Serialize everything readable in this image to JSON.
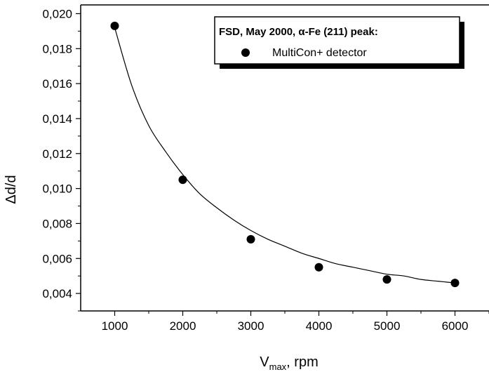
{
  "chart_data": {
    "type": "scatter",
    "title": "",
    "xlabel": {
      "main": "V",
      "sub": "max",
      "rest": ", rpm"
    },
    "ylabel": "Δd/d",
    "xlim": [
      500,
      6500
    ],
    "ylim": [
      0.003,
      0.0205
    ],
    "x_ticks": [
      1000,
      2000,
      3000,
      4000,
      5000,
      6000
    ],
    "x_tick_labels": [
      "1000",
      "2000",
      "3000",
      "4000",
      "5000",
      "6000"
    ],
    "y_ticks": [
      0.004,
      0.006,
      0.008,
      0.01,
      0.012,
      0.014,
      0.016,
      0.018,
      0.02
    ],
    "y_tick_labels": [
      "0,004",
      "0,006",
      "0,008",
      "0,010",
      "0,012",
      "0,014",
      "0,016",
      "0,018",
      "0,020"
    ],
    "grid": false,
    "legend": {
      "placement": "top-right",
      "title": "FSD, May 2000, α-Fe (211) peak:",
      "entries": [
        "MultiCon+ detector"
      ]
    },
    "series": [
      {
        "name": "MultiCon+ detector",
        "marker": "filled-circle",
        "x": [
          1000,
          2000,
          3000,
          4000,
          5000,
          6000
        ],
        "y": [
          0.0193,
          0.0105,
          0.0071,
          0.0055,
          0.0048,
          0.0046
        ]
      }
    ],
    "fit_curve": {
      "x": [
        1000,
        1250,
        1500,
        1750,
        2000,
        2250,
        2500,
        2750,
        3000,
        3250,
        3500,
        3750,
        4000,
        4250,
        4500,
        4750,
        5000,
        5250,
        5500,
        5750,
        6000
      ],
      "y": [
        0.0192,
        0.0159,
        0.0136,
        0.0121,
        0.0108,
        0.0097,
        0.0089,
        0.0082,
        0.0076,
        0.0071,
        0.0067,
        0.0063,
        0.006,
        0.0057,
        0.0055,
        0.0053,
        0.0051,
        0.005,
        0.0048,
        0.0047,
        0.0046
      ]
    },
    "colors": {
      "marker": "#000000",
      "line": "#000000",
      "axis": "#000000"
    }
  }
}
